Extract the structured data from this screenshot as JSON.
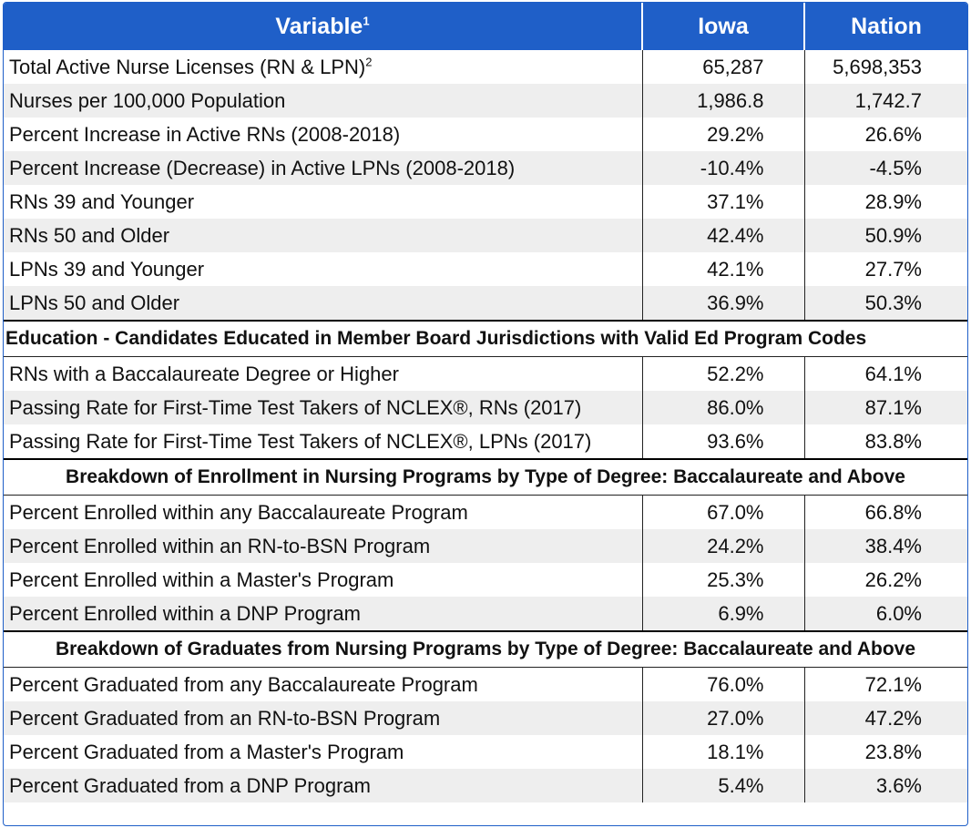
{
  "header": {
    "variable": "Variable",
    "variable_sup": "1",
    "iowa": "Iowa",
    "nation": "Nation"
  },
  "rows_general": [
    {
      "label": "Total Active Nurse Licenses (RN & LPN)",
      "sup": "2",
      "iowa": "65,287",
      "nation": "5,698,353"
    },
    {
      "label": "Nurses per 100,000 Population",
      "iowa": "1,986.8",
      "nation": "1,742.7"
    },
    {
      "label": "Percent Increase in Active RNs (2008-2018)",
      "iowa": "29.2%",
      "nation": "26.6%"
    },
    {
      "label": "Percent Increase (Decrease) in Active LPNs (2008-2018)",
      "iowa": "-10.4%",
      "nation": "-4.5%"
    },
    {
      "label": "RNs 39 and Younger",
      "iowa": "37.1%",
      "nation": "28.9%"
    },
    {
      "label": "RNs 50 and Older",
      "iowa": "42.4%",
      "nation": "50.9%"
    },
    {
      "label": "LPNs 39 and Younger",
      "iowa": "42.1%",
      "nation": "27.7%"
    },
    {
      "label": "LPNs 50 and Older",
      "iowa": "36.9%",
      "nation": "50.3%"
    }
  ],
  "section_education": "Education - Candidates Educated in Member Board Jurisdictions with Valid Ed Program Codes",
  "rows_education": [
    {
      "label": "RNs with a Baccalaureate Degree or Higher",
      "iowa": "52.2%",
      "nation": "64.1%"
    },
    {
      "label": "Passing Rate for First-Time Test Takers of NCLEX®, RNs (2017)",
      "iowa": "86.0%",
      "nation": "87.1%"
    },
    {
      "label": "Passing Rate for First-Time Test Takers of NCLEX®, LPNs (2017)",
      "iowa": "93.6%",
      "nation": "83.8%"
    }
  ],
  "section_enrollment": "Breakdown of Enrollment in Nursing Programs by Type of Degree: Baccalaureate and Above",
  "rows_enrollment": [
    {
      "label": "Percent Enrolled within any Baccalaureate Program",
      "iowa": "67.0%",
      "nation": "66.8%"
    },
    {
      "label": "Percent Enrolled within an RN-to-BSN Program",
      "iowa": "24.2%",
      "nation": "38.4%"
    },
    {
      "label": "Percent Enrolled within a Master's Program",
      "iowa": "25.3%",
      "nation": "26.2%"
    },
    {
      "label": "Percent Enrolled within a DNP Program",
      "iowa": "6.9%",
      "nation": "6.0%"
    }
  ],
  "section_graduates": "Breakdown of Graduates from Nursing Programs by Type of Degree: Baccalaureate and Above",
  "rows_graduates": [
    {
      "label": "Percent Graduated from any Baccalaureate Program",
      "iowa": "76.0%",
      "nation": "72.1%"
    },
    {
      "label": "Percent Graduated from an RN-to-BSN Program",
      "iowa": "27.0%",
      "nation": "47.2%"
    },
    {
      "label": "Percent Graduated from a Master's Program",
      "iowa": "18.1%",
      "nation": "23.8%"
    },
    {
      "label": "Percent Graduated from a DNP Program",
      "iowa": "5.4%",
      "nation": "3.6%"
    }
  ],
  "colors": {
    "header_bg": "#1f5fc8",
    "alt_row": "#eeeeee"
  }
}
